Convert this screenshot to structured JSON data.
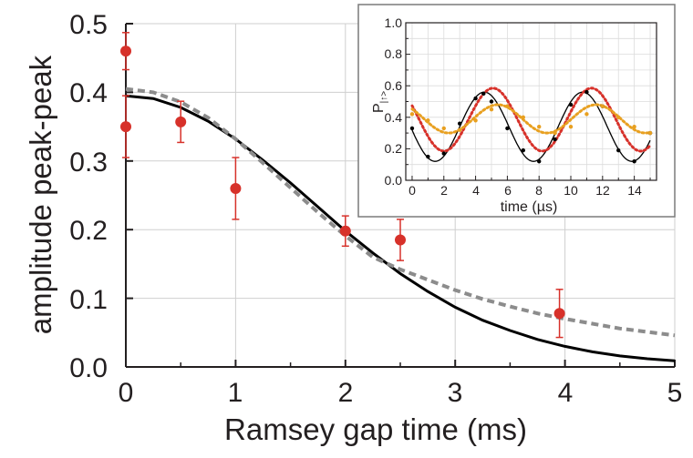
{
  "chart_data": [
    {
      "type": "scatter",
      "title": "",
      "xlabel": "Ramsey gap time (ms)",
      "ylabel": "amplitude peak-peak",
      "xlim": [
        0,
        5
      ],
      "ylim": [
        0,
        0.5
      ],
      "xticks": [
        "0",
        "1",
        "2",
        "3",
        "4",
        "5"
      ],
      "yticks": [
        "0.0",
        "0.1",
        "0.2",
        "0.3",
        "0.4",
        "0.5"
      ],
      "grid": true,
      "colors": {
        "points": "#d7312a",
        "solid": "#000000",
        "dashed": "#8c8c8c",
        "axis": "#231f20"
      },
      "series": [
        {
          "kind": "points",
          "x": [
            0.0,
            0.0,
            0.5,
            1.0,
            2.0,
            2.5,
            3.95
          ],
          "y": [
            0.46,
            0.35,
            0.357,
            0.26,
            0.198,
            0.185,
            0.078
          ],
          "yerr": [
            0.027,
            0.045,
            0.03,
            0.045,
            0.022,
            0.03,
            0.035
          ]
        },
        {
          "kind": "line",
          "style": "solid",
          "x": [
            0.0,
            0.25,
            0.5,
            0.75,
            1.0,
            1.25,
            1.5,
            1.75,
            2.0,
            2.25,
            2.5,
            2.75,
            3.0,
            3.25,
            3.5,
            3.75,
            4.0,
            4.25,
            4.5,
            4.75,
            5.0
          ],
          "y": [
            0.395,
            0.391,
            0.378,
            0.358,
            0.332,
            0.301,
            0.268,
            0.233,
            0.198,
            0.166,
            0.136,
            0.11,
            0.087,
            0.068,
            0.053,
            0.04,
            0.03,
            0.022,
            0.016,
            0.012,
            0.009
          ]
        },
        {
          "kind": "line",
          "style": "dashed",
          "x": [
            0.0,
            0.25,
            0.5,
            0.75,
            1.0,
            1.25,
            1.5,
            1.75,
            2.0,
            2.25,
            2.5,
            2.75,
            3.0,
            3.25,
            3.5,
            3.75,
            4.0,
            4.25,
            4.5,
            4.75,
            5.0
          ],
          "y": [
            0.405,
            0.4,
            0.386,
            0.363,
            0.332,
            0.297,
            0.261,
            0.225,
            0.191,
            0.16,
            0.142,
            0.127,
            0.112,
            0.099,
            0.088,
            0.078,
            0.07,
            0.063,
            0.056,
            0.051,
            0.046
          ]
        }
      ]
    },
    {
      "type": "line",
      "title": "",
      "xlabel": "time (µs)",
      "ylabel": "P",
      "ylabel_sub": "|↑>",
      "xlim": [
        -0.4,
        15.4
      ],
      "ylim": [
        0,
        1.0
      ],
      "xticks": [
        "0",
        "2",
        "4",
        "6",
        "8",
        "10",
        "12",
        "14"
      ],
      "yticks": [
        "0.0",
        "0.2",
        "0.4",
        "0.6",
        "0.8",
        "1.0"
      ],
      "grid": true,
      "colors": {
        "black": "#000000",
        "red": "#d7312a",
        "gold": "#e8a020"
      },
      "series": [
        {
          "style": "solid",
          "color": "black",
          "fit": {
            "offset": 0.34,
            "amplitude": 0.22,
            "period": 6.2,
            "peak": 4.55
          },
          "points_x": [
            0,
            1,
            2,
            3,
            4,
            4.5,
            5,
            6,
            7,
            8,
            9,
            10,
            11,
            12,
            13,
            14,
            15
          ],
          "points_y": [
            0.33,
            0.15,
            0.17,
            0.36,
            0.52,
            0.55,
            0.5,
            0.33,
            0.19,
            0.12,
            0.26,
            0.48,
            0.56,
            0.47,
            0.19,
            0.12,
            0.3
          ]
        },
        {
          "style": "dotted",
          "color": "red",
          "fit": {
            "offset": 0.385,
            "amplitude": 0.2,
            "period": 6.2,
            "peak": 5.1
          },
          "points_x": [],
          "points_y": []
        },
        {
          "style": "dotted",
          "color": "gold",
          "fit": {
            "offset": 0.39,
            "amplitude": 0.09,
            "period": 6.2,
            "peak": 5.4
          },
          "points_x": [
            0,
            1,
            2,
            3,
            4,
            5,
            6,
            7,
            8,
            9,
            10,
            11,
            12,
            13,
            14,
            15
          ],
          "points_y": [
            0.42,
            0.38,
            0.33,
            0.32,
            0.38,
            0.45,
            0.47,
            0.4,
            0.34,
            0.3,
            0.34,
            0.42,
            0.47,
            0.4,
            0.34,
            0.3
          ]
        }
      ]
    }
  ]
}
